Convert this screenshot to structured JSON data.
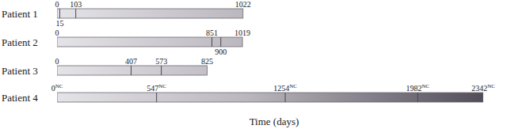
{
  "chart_data": {
    "type": "timeline",
    "orientation": "horizontal",
    "categories": [
      "Patient 1",
      "Patient 2",
      "Patient 3",
      "Patient 4"
    ],
    "starts": [
      0,
      0,
      0,
      0
    ],
    "values": [
      1022,
      1019,
      825,
      2342
    ],
    "events": [
      [
        15,
        103
      ],
      [
        851,
        900
      ],
      [
        407,
        573
      ],
      [
        547,
        1254,
        1982
      ]
    ],
    "superscripts": [
      null,
      null,
      null,
      "NC"
    ],
    "x_label": "Time (days)",
    "xlim": [
      0,
      2342
    ],
    "tick_labels": false,
    "grid": false
  }
}
